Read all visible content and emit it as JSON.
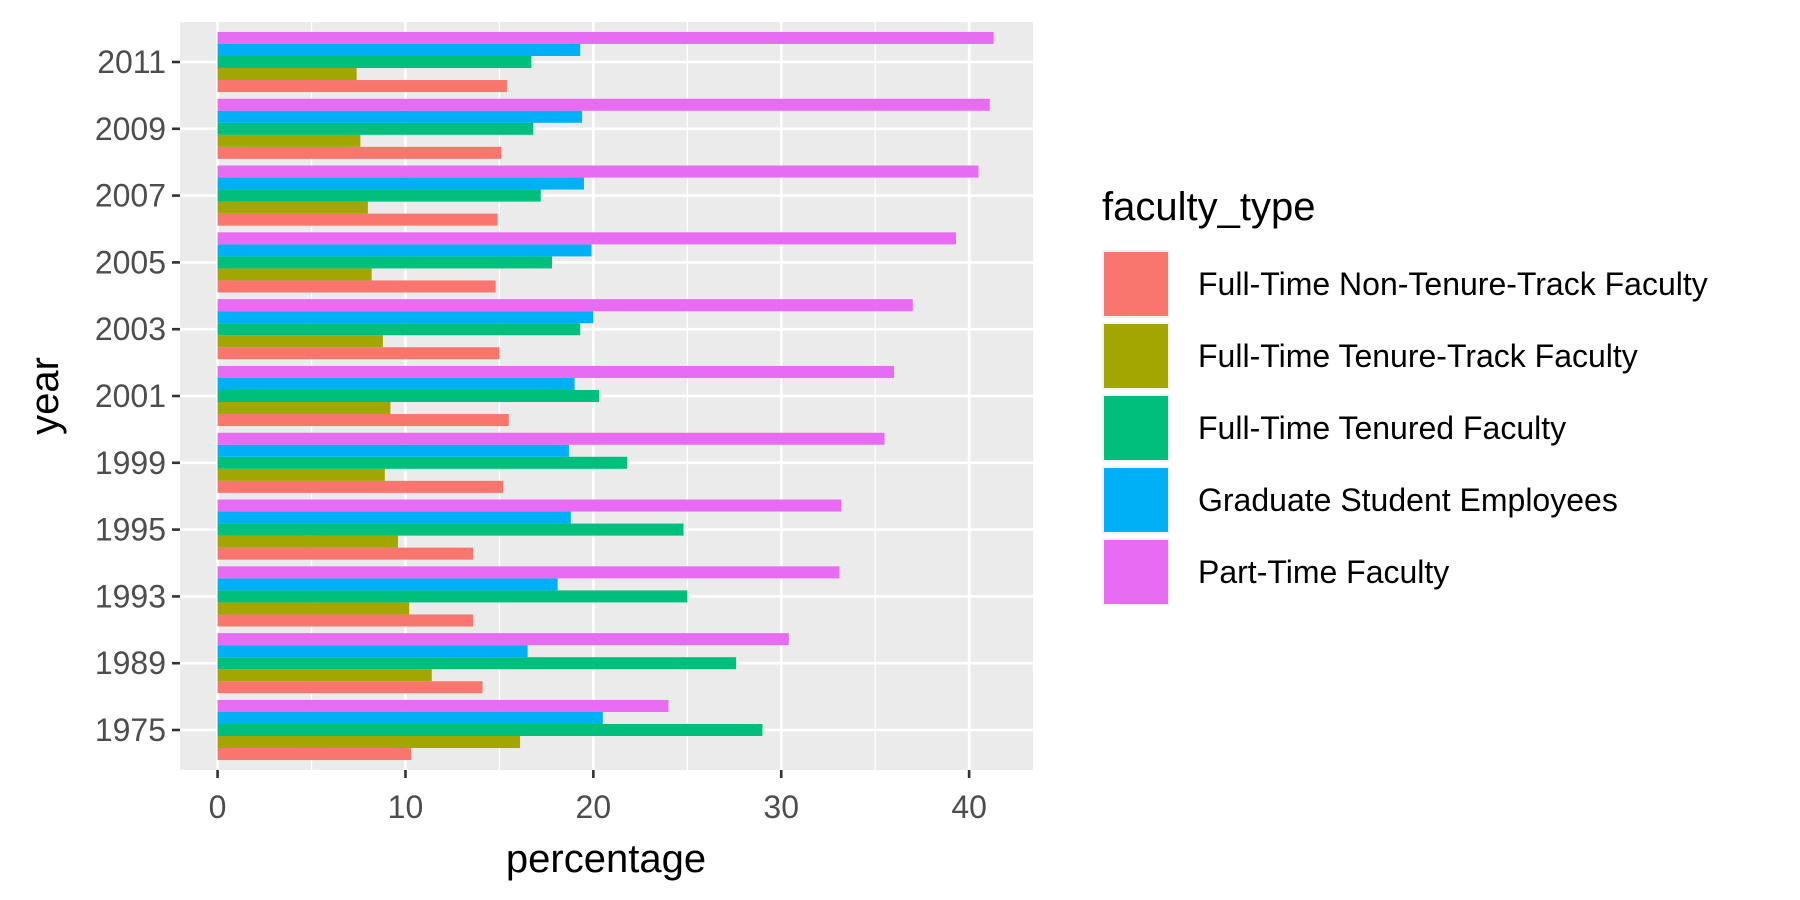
{
  "chart_data": {
    "type": "bar",
    "orientation": "horizontal",
    "xlabel": "percentage",
    "ylabel": "year",
    "xlim": [
      -2,
      43.4
    ],
    "xticks": [
      0,
      10,
      20,
      30,
      40
    ],
    "grid": true,
    "legend_title": "faculty_type",
    "legend_position": "right",
    "categories": [
      "1975",
      "1989",
      "1993",
      "1995",
      "1999",
      "2001",
      "2003",
      "2005",
      "2007",
      "2009",
      "2011"
    ],
    "series": [
      {
        "name": "Full-Time Non-Tenure-Track Faculty",
        "color": "#F8766D",
        "values": [
          10.3,
          14.1,
          13.6,
          13.6,
          15.2,
          15.5,
          15.0,
          14.8,
          14.9,
          15.1,
          15.4
        ]
      },
      {
        "name": "Full-Time Tenure-Track Faculty",
        "color": "#A3A500",
        "values": [
          16.1,
          11.4,
          10.2,
          9.6,
          8.9,
          9.2,
          8.8,
          8.2,
          8.0,
          7.6,
          7.4
        ]
      },
      {
        "name": "Full-Time Tenured Faculty",
        "color": "#00BF7D",
        "values": [
          29.0,
          27.6,
          25.0,
          24.8,
          21.8,
          20.3,
          19.3,
          17.8,
          17.2,
          16.8,
          16.7
        ]
      },
      {
        "name": "Graduate Student Employees",
        "color": "#00B0F6",
        "values": [
          20.5,
          16.5,
          18.1,
          18.8,
          18.7,
          19.0,
          20.0,
          19.9,
          19.5,
          19.4,
          19.3
        ]
      },
      {
        "name": "Part-Time Faculty",
        "color": "#E76BF3",
        "values": [
          24.0,
          30.4,
          33.1,
          33.2,
          35.5,
          36.0,
          37.0,
          39.3,
          40.5,
          41.1,
          41.3
        ]
      }
    ]
  }
}
